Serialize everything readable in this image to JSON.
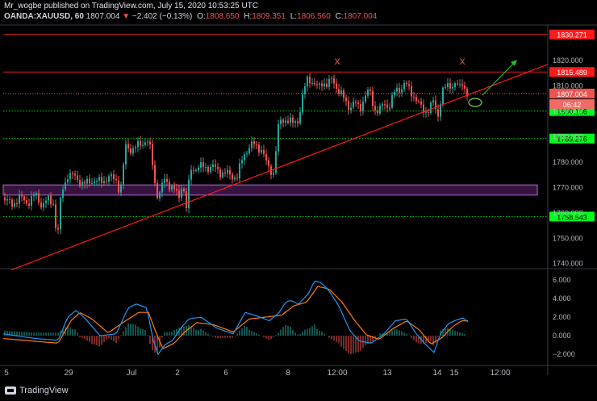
{
  "header": {
    "publisher_line": "Mr_wogbe published on TradingView.com, July 15, 2020 10:53:25 UTC",
    "symbol": "OANDA:XAUUSD, 60",
    "last": "1807.004",
    "change_arrow": "▼",
    "change": "−2.402 (−0.13%)",
    "o_label": "O:",
    "o_val": "1808.650",
    "h_label": "H:",
    "h_val": "1809.351",
    "l_label": "L:",
    "l_val": "1806.560",
    "c_label": "C:",
    "c_val": "1807.004"
  },
  "footer": {
    "brand": "TradingView"
  },
  "colors": {
    "up": "#26a69a",
    "down": "#ef5350",
    "trend": "#ff1a1a",
    "level_red": "#ff1a1a",
    "level_green": "#00ff1a",
    "zone": "#7b2a8c",
    "macd": "#2196f3",
    "signal": "#ff7f0e",
    "arrow": "#22c022"
  },
  "chart_data": [
    {
      "type": "candlestick",
      "title": "",
      "ylim": [
        1738,
        1834
      ],
      "y_ticks": [
        "1740.000",
        "1750.000",
        "1760.000",
        "1770.000",
        "1780.000",
        "1790.000",
        "1800.000",
        "1810.000",
        "1820.000"
      ],
      "x_ticks": [
        "5",
        "29",
        "Jul",
        "2",
        "6",
        "8",
        "12:00",
        "13",
        "14",
        "15",
        "12:00"
      ],
      "price_path": [
        [
          0,
          1766
        ],
        [
          10,
          1763
        ],
        [
          20,
          1766
        ],
        [
          30,
          1764
        ],
        [
          40,
          1767
        ],
        [
          48,
          1763
        ],
        [
          55,
          1765
        ],
        [
          62,
          1764
        ],
        [
          67,
          1749
        ],
        [
          72,
          1768
        ],
        [
          80,
          1775
        ],
        [
          90,
          1774
        ],
        [
          100,
          1771
        ],
        [
          110,
          1773
        ],
        [
          120,
          1772
        ],
        [
          130,
          1774
        ],
        [
          140,
          1773
        ],
        [
          145,
          1768
        ],
        [
          152,
          1786
        ],
        [
          160,
          1785
        ],
        [
          170,
          1787
        ],
        [
          178,
          1789
        ],
        [
          183,
          1784
        ],
        [
          188,
          1772
        ],
        [
          192,
          1766
        ],
        [
          200,
          1773
        ],
        [
          210,
          1770
        ],
        [
          218,
          1766
        ],
        [
          222,
          1773
        ],
        [
          227,
          1762
        ],
        [
          232,
          1777
        ],
        [
          240,
          1778
        ],
        [
          250,
          1778
        ],
        [
          260,
          1778
        ],
        [
          270,
          1776
        ],
        [
          280,
          1775
        ],
        [
          290,
          1774
        ],
        [
          298,
          1783
        ],
        [
          305,
          1786
        ],
        [
          312,
          1787
        ],
        [
          320,
          1785
        ],
        [
          328,
          1778
        ],
        [
          335,
          1776
        ],
        [
          342,
          1796
        ],
        [
          350,
          1797
        ],
        [
          358,
          1795
        ],
        [
          366,
          1797
        ],
        [
          372,
          1807
        ],
        [
          378,
          1814
        ],
        [
          384,
          1811
        ],
        [
          390,
          1809
        ],
        [
          396,
          1812
        ],
        [
          402,
          1810
        ],
        [
          408,
          1813
        ],
        [
          414,
          1809
        ],
        [
          420,
          1806
        ],
        [
          428,
          1802
        ],
        [
          436,
          1803
        ],
        [
          442,
          1801
        ],
        [
          448,
          1806
        ],
        [
          454,
          1808
        ],
        [
          460,
          1801
        ],
        [
          466,
          1800
        ],
        [
          472,
          1803
        ],
        [
          478,
          1802
        ],
        [
          486,
          1808
        ],
        [
          492,
          1809
        ],
        [
          498,
          1811
        ],
        [
          504,
          1808
        ],
        [
          510,
          1806
        ],
        [
          516,
          1802
        ],
        [
          522,
          1800
        ],
        [
          528,
          1801
        ],
        [
          534,
          1804
        ],
        [
          538,
          1797
        ],
        [
          544,
          1808
        ],
        [
          552,
          1810
        ],
        [
          560,
          1811
        ],
        [
          566,
          1809
        ],
        [
          570,
          1812
        ],
        [
          574,
          1807
        ]
      ],
      "levels": [
        {
          "label": "1830.271",
          "value": 1830.271,
          "style": "red"
        },
        {
          "label": "1815.489",
          "value": 1815.489,
          "style": "red"
        },
        {
          "label": "1800.106",
          "value": 1800.106,
          "style": "green"
        },
        {
          "label": "1789.276",
          "value": 1789.276,
          "style": "green"
        },
        {
          "label": "1758.543",
          "value": 1758.543,
          "style": "green"
        }
      ],
      "current_price_tag": {
        "label": "1807.004",
        "value": 1807.004
      },
      "countdown_tag": "06:42",
      "zone": {
        "low": 1767,
        "high": 1771
      },
      "trendline": {
        "from_x": 0,
        "from_price": 1737.5,
        "to_x": 679,
        "to_price": 1818.5
      },
      "annotations": [
        {
          "text": "X",
          "x": 418,
          "price": 1818.5
        },
        {
          "text": "X",
          "x": 573,
          "price": 1818.5
        }
      ]
    },
    {
      "type": "macd",
      "ylim": [
        -3.2,
        7.2
      ],
      "y_ticks": [
        "6.000",
        "4.000",
        "2.000",
        "0.000",
        "−2.000"
      ],
      "series": [
        {
          "name": "",
          "values": [
            [
              0,
              0.2
            ],
            [
              40,
              -0.3
            ],
            [
              68,
              -0.5
            ],
            [
              80,
              2
            ],
            [
              90,
              2.7
            ],
            [
              100,
              2
            ],
            [
              120,
              0
            ],
            [
              140,
              0.2
            ],
            [
              155,
              3
            ],
            [
              165,
              3.4
            ],
            [
              178,
              3
            ],
            [
              186,
              -0.5
            ],
            [
              192,
              -2
            ],
            [
              200,
              -1
            ],
            [
              210,
              -0.5
            ],
            [
              220,
              0.8
            ],
            [
              230,
              1.8
            ],
            [
              245,
              2
            ],
            [
              265,
              0.8
            ],
            [
              285,
              0.2
            ],
            [
              300,
              2.5
            ],
            [
              315,
              2.1
            ],
            [
              330,
              1.6
            ],
            [
              342,
              2.5
            ],
            [
              350,
              3.6
            ],
            [
              356,
              3.8
            ],
            [
              366,
              3.4
            ],
            [
              378,
              4.5
            ],
            [
              386,
              5.9
            ],
            [
              394,
              5.7
            ],
            [
              404,
              4.8
            ],
            [
              416,
              3.2
            ],
            [
              430,
              0.5
            ],
            [
              442,
              -0.6
            ],
            [
              456,
              -0.8
            ],
            [
              472,
              0.2
            ],
            [
              486,
              1.6
            ],
            [
              500,
              1.8
            ],
            [
              512,
              0.2
            ],
            [
              522,
              -0.8
            ],
            [
              534,
              -1.8
            ],
            [
              542,
              0.2
            ],
            [
              552,
              1.3
            ],
            [
              562,
              1.7
            ],
            [
              570,
              1.9
            ],
            [
              576,
              1.5
            ]
          ]
        },
        {
          "name": "",
          "values": [
            [
              0,
              -0.3
            ],
            [
              40,
              -0.6
            ],
            [
              68,
              -0.8
            ],
            [
              84,
              1.6
            ],
            [
              95,
              2.5
            ],
            [
              110,
              1.8
            ],
            [
              130,
              0.3
            ],
            [
              150,
              1.5
            ],
            [
              168,
              2.5
            ],
            [
              180,
              2.5
            ],
            [
              190,
              0.2
            ],
            [
              198,
              -1.4
            ],
            [
              212,
              -0.8
            ],
            [
              225,
              0.4
            ],
            [
              240,
              1.4
            ],
            [
              260,
              1.2
            ],
            [
              285,
              0.4
            ],
            [
              305,
              1.8
            ],
            [
              325,
              2
            ],
            [
              345,
              2.2
            ],
            [
              360,
              3.2
            ],
            [
              376,
              3.6
            ],
            [
              390,
              5.3
            ],
            [
              404,
              5
            ],
            [
              420,
              3.6
            ],
            [
              436,
              1.6
            ],
            [
              450,
              0.1
            ],
            [
              466,
              -0.4
            ],
            [
              482,
              0.7
            ],
            [
              500,
              1.6
            ],
            [
              516,
              0.6
            ],
            [
              530,
              -0.9
            ],
            [
              544,
              -0.2
            ],
            [
              556,
              0.9
            ],
            [
              568,
              1.6
            ],
            [
              576,
              1.6
            ]
          ]
        }
      ]
    }
  ]
}
